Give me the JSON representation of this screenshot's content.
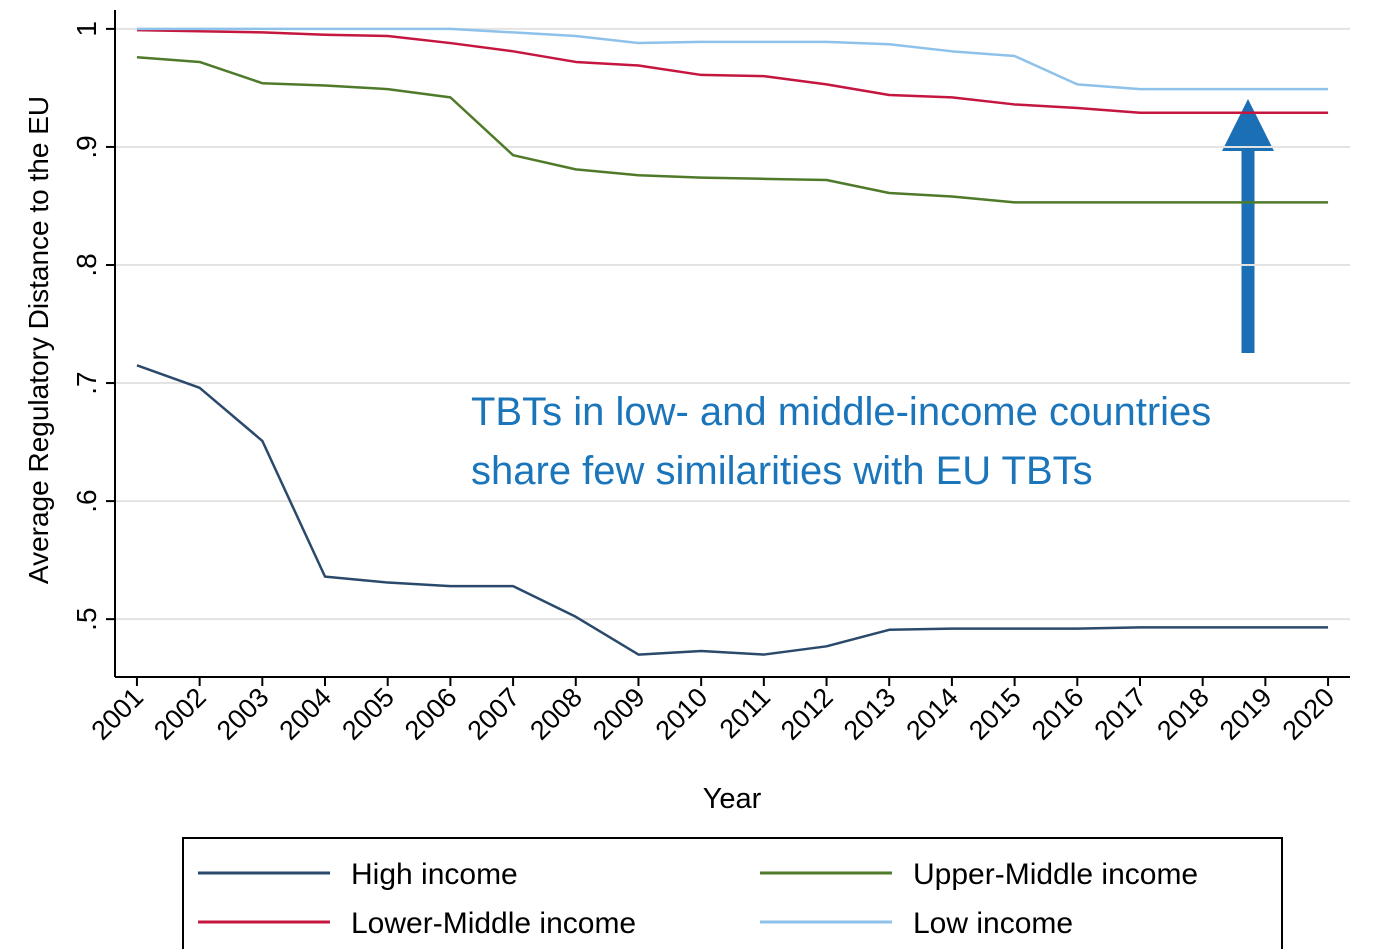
{
  "chart_data": {
    "type": "line",
    "ylabel": "Average Regulatory Distance to the EU",
    "xlabel": "Year",
    "x": [
      2001,
      2002,
      2003,
      2004,
      2005,
      2006,
      2007,
      2008,
      2009,
      2010,
      2011,
      2012,
      2013,
      2014,
      2015,
      2016,
      2017,
      2018,
      2019,
      2020
    ],
    "xlim": [
      2000.65,
      2020.35
    ],
    "xticks": [
      2001,
      2002,
      2003,
      2004,
      2005,
      2006,
      2007,
      2008,
      2009,
      2010,
      2011,
      2012,
      2013,
      2014,
      2015,
      2016,
      2017,
      2018,
      2019,
      2020
    ],
    "ylim": [
      0.451,
      1.016
    ],
    "yticks": [
      {
        "value": 0.5,
        "label": ".5"
      },
      {
        "value": 0.6,
        "label": ".6"
      },
      {
        "value": 0.7,
        "label": ".7"
      },
      {
        "value": 0.8,
        "label": ".8"
      },
      {
        "value": 0.9,
        "label": ".9"
      },
      1
    ],
    "grid": true,
    "series": [
      {
        "name": "High income",
        "color": "#2b4a6b",
        "values": [
          0.715,
          0.696,
          0.651,
          0.536,
          0.531,
          0.528,
          0.528,
          0.502,
          0.47,
          0.473,
          0.47,
          0.477,
          0.491,
          0.492,
          0.492,
          0.492,
          0.493,
          0.493,
          0.493,
          0.493
        ]
      },
      {
        "name": "Upper-Middle income",
        "color": "#4f7a2a",
        "values": [
          0.976,
          0.972,
          0.954,
          0.952,
          0.949,
          0.942,
          0.893,
          0.881,
          0.876,
          0.874,
          0.873,
          0.872,
          0.861,
          0.858,
          0.853,
          0.853,
          0.853,
          0.853,
          0.853,
          0.853
        ]
      },
      {
        "name": "Lower-Middle income",
        "color": "#c4163f",
        "values": [
          0.999,
          0.998,
          0.997,
          0.995,
          0.994,
          0.988,
          0.981,
          0.972,
          0.969,
          0.961,
          0.96,
          0.953,
          0.944,
          0.942,
          0.936,
          0.933,
          0.929,
          0.929,
          0.929,
          0.929
        ]
      },
      {
        "name": "Low income",
        "color": "#8ec2ea",
        "values": [
          1.0,
          1.0,
          1.0,
          1.0,
          1.0,
          1.0,
          0.997,
          0.994,
          0.988,
          0.989,
          0.989,
          0.989,
          0.987,
          0.981,
          0.977,
          0.953,
          0.949,
          0.949,
          0.949,
          0.949
        ]
      }
    ],
    "annotations": [
      "TBTs in low- and middle-income countries",
      "share few similarities with EU TBTs"
    ]
  }
}
